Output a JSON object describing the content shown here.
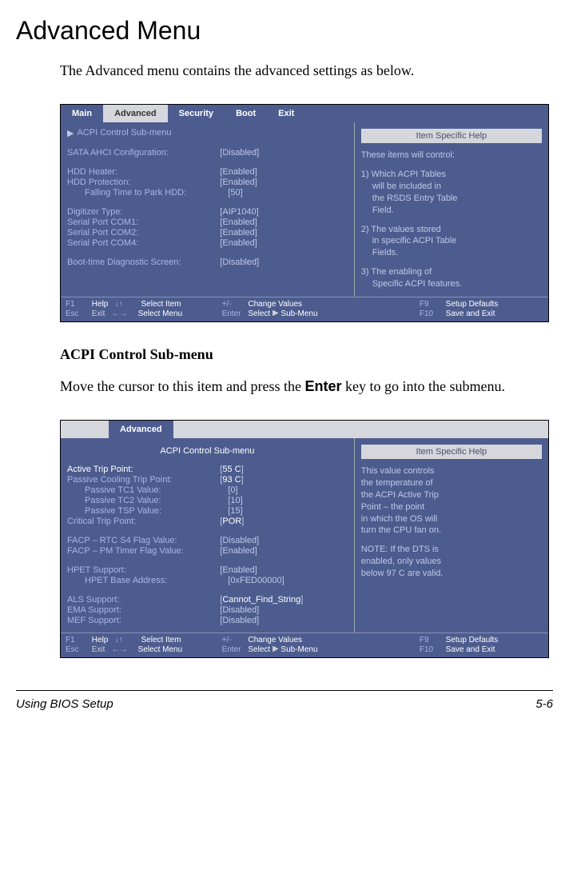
{
  "page": {
    "title": "Advanced Menu",
    "intro": "The Advanced menu contains the advanced settings as below.",
    "sub_title": "ACPI Control Sub-menu",
    "sub_text_a": "Move the cursor to this item and press the ",
    "sub_text_key": "Enter",
    "sub_text_b": " key to go into the submenu.",
    "footer_left": "Using BIOS Setup",
    "footer_right": "5-6"
  },
  "bios1": {
    "tabs": [
      "Main",
      "Advanced",
      "Security",
      "Boot",
      "Exit"
    ],
    "active_tab": 1,
    "submenu_arrow": "▶",
    "submenu_label": "ACPI Control Sub-menu",
    "rows": [
      {
        "label": "SATA AHCI Configuration:",
        "value": "Disabled"
      },
      {
        "gap": true
      },
      {
        "label": "HDD Heater:",
        "value": "Enabled"
      },
      {
        "label": "HDD Protection:",
        "value": "Enabled"
      },
      {
        "label": "Falling Time to Park HDD:",
        "value": "50",
        "indent": 2
      },
      {
        "gap": true
      },
      {
        "label": "Digitizer Type:",
        "value": "AIP1040"
      },
      {
        "label": "Serial Port COM1:",
        "value": "Enabled"
      },
      {
        "label": "Serial Port COM2:",
        "value": "Enabled"
      },
      {
        "label": "Serial Port COM4:",
        "value": "Enabled"
      },
      {
        "gap": true
      },
      {
        "label": "Boot-time Diagnostic Screen:",
        "value": "Disabled"
      }
    ],
    "help_title": "Item Specific Help",
    "help": {
      "l0": "These items will control:",
      "l1a": "1) Which ACPI Tables",
      "l1b": "will be included in",
      "l1c": "the RSDS Entry Table",
      "l1d": "Field.",
      "l2a": "2) The values stored",
      "l2b": "in specific ACPI Table",
      "l2c": "Fields.",
      "l3a": "3) The enabling of",
      "l3b": "Specific ACPI features."
    },
    "footer": {
      "f1": "F1",
      "help": "Help",
      "updn": "↓↑",
      "selitem": "Select Item",
      "pm": "+/-",
      "chg": "Change Values",
      "f9": "F9",
      "defs": "Setup Defaults",
      "esc": "Esc",
      "exit": "Exit",
      "lr": "←→",
      "selmenu": "Select Menu",
      "ent": "Enter",
      "sel": "Select",
      "tri": "▶",
      "sub": "Sub-Menu",
      "f10": "F10",
      "save": "Save and Exit"
    }
  },
  "bios2": {
    "tab": "Advanced",
    "title": "ACPI Control Sub-menu",
    "rows": [
      {
        "label": "Active Trip Point:",
        "value": "55 C",
        "lblwhite": true,
        "valwhite": true
      },
      {
        "label": "Passive Cooling Trip Point:",
        "value": "93 C",
        "valwhite": true
      },
      {
        "label": "Passive TC1 Value:",
        "value": "0",
        "indent": 2
      },
      {
        "label": "Passive TC2 Value:",
        "value": "10",
        "indent": 2
      },
      {
        "label": "Passive TSP Value:",
        "value": "15",
        "indent": 2
      },
      {
        "label": "Critical Trip Point:",
        "value": "POR",
        "valwhite": true
      },
      {
        "gap": true
      },
      {
        "label": "FACP – RTC S4 Flag Value:",
        "value": "Disabled"
      },
      {
        "label": "FACP – PM Timer Flag Value:",
        "value": "Enabled"
      },
      {
        "gap": true
      },
      {
        "label": "HPET Support:",
        "value": "Enabled"
      },
      {
        "label": "HPET Base Address:",
        "value": "0xFED00000",
        "indent": 2
      },
      {
        "gap": true
      },
      {
        "label": "ALS Support:",
        "value": "Cannot_Find_String",
        "valwhite": true
      },
      {
        "label": "EMA Support:",
        "value": "Disabled"
      },
      {
        "label": "MEF Support:",
        "value": "Disabled"
      }
    ],
    "help_title": "Item Specific Help",
    "help": {
      "l1": "This value controls",
      "l2": "the temperature of",
      "l3": "the ACPI Active Trip",
      "l4": "Point – the point",
      "l5": "in which the OS will",
      "l6": "turn the CPU fan on.",
      "n1": "NOTE: If the DTS is",
      "n2": "enabled, only values",
      "n3": "below 97 C are valid."
    },
    "footer": {
      "f1": "F1",
      "help": "Help",
      "updn": "↓↑",
      "selitem": "Select Item",
      "pm": "+/-",
      "chg": "Change Values",
      "f9": "F9",
      "defs": "Setup Defaults",
      "esc": "Esc",
      "exit": "Exit",
      "lr": "←→",
      "selmenu": "Select Menu",
      "ent": "Enter",
      "sel": "Select",
      "tri": "▶",
      "sub": "Sub-Menu",
      "f10": "F10",
      "save": "Save and Exit"
    }
  }
}
